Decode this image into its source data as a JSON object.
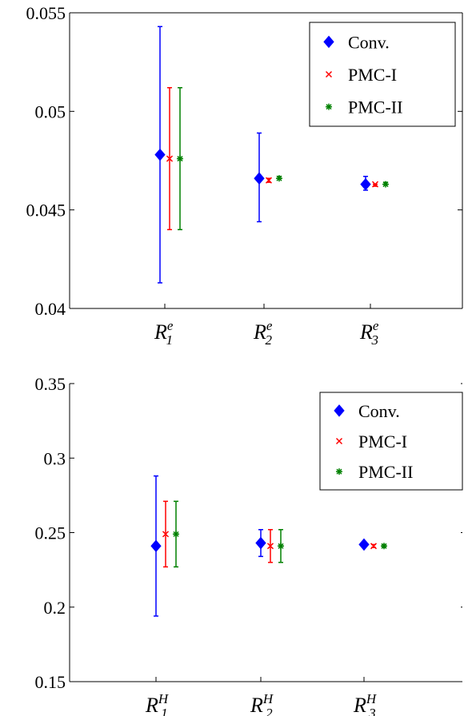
{
  "chart_data": [
    {
      "type": "errorbar",
      "categories": [
        {
          "base": "R",
          "sub": "1",
          "sup": "e"
        },
        {
          "base": "R",
          "sub": "2",
          "sup": "e"
        },
        {
          "base": "R",
          "sub": "3",
          "sup": "e"
        }
      ],
      "ylim": [
        0.04,
        0.055
      ],
      "yticks": [
        "0.04",
        "0.045",
        "0.05",
        "0.055"
      ],
      "ytick_values": [
        0.04,
        0.045,
        0.05,
        0.055
      ],
      "legend": {
        "position": "top-right",
        "entries": [
          "Conv.",
          "PMC-I",
          "PMC-II"
        ]
      },
      "series": [
        {
          "name": "Conv.",
          "color": "#0000ff",
          "marker": "diamond",
          "values": [
            0.0478,
            0.0466,
            0.0463
          ],
          "lower": [
            0.0413,
            0.0444,
            0.046
          ],
          "upper": [
            0.0543,
            0.0489,
            0.0467
          ]
        },
        {
          "name": "PMC-I",
          "color": "#ff0000",
          "marker": "x",
          "values": [
            0.0476,
            0.0465,
            0.0463
          ],
          "lower": [
            0.044,
            0.0464,
            0.0462
          ],
          "upper": [
            0.0512,
            0.0466,
            0.0463
          ]
        },
        {
          "name": "PMC-II",
          "color": "#008000",
          "marker": "star",
          "values": [
            0.0476,
            0.0466,
            0.0463
          ],
          "lower": [
            0.044,
            0.0466,
            0.0463
          ],
          "upper": [
            0.0512,
            0.0467,
            0.0464
          ]
        }
      ]
    },
    {
      "type": "errorbar",
      "categories": [
        {
          "base": "R",
          "sub": "1",
          "sup": "H"
        },
        {
          "base": "R",
          "sub": "2",
          "sup": "H"
        },
        {
          "base": "R",
          "sub": "3",
          "sup": "H"
        }
      ],
      "ylim": [
        0.15,
        0.35
      ],
      "yticks": [
        "0.15",
        "0.2",
        "0.25",
        "0.3",
        "0.35"
      ],
      "ytick_values": [
        0.15,
        0.2,
        0.25,
        0.3,
        0.35
      ],
      "legend": {
        "position": "top-right",
        "entries": [
          "Conv.",
          "PMC-I",
          "PMC-II"
        ]
      },
      "series": [
        {
          "name": "Conv.",
          "color": "#0000ff",
          "marker": "diamond",
          "values": [
            0.241,
            0.243,
            0.242
          ],
          "lower": [
            0.194,
            0.234,
            0.241
          ],
          "upper": [
            0.288,
            0.252,
            0.243
          ]
        },
        {
          "name": "PMC-I",
          "color": "#ff0000",
          "marker": "x",
          "values": [
            0.249,
            0.241,
            0.241
          ],
          "lower": [
            0.227,
            0.23,
            0.24
          ],
          "upper": [
            0.271,
            0.252,
            0.242
          ]
        },
        {
          "name": "PMC-II",
          "color": "#008000",
          "marker": "star",
          "values": [
            0.249,
            0.241,
            0.241
          ],
          "lower": [
            0.227,
            0.23,
            0.24
          ],
          "upper": [
            0.271,
            0.252,
            0.242
          ]
        }
      ]
    }
  ]
}
